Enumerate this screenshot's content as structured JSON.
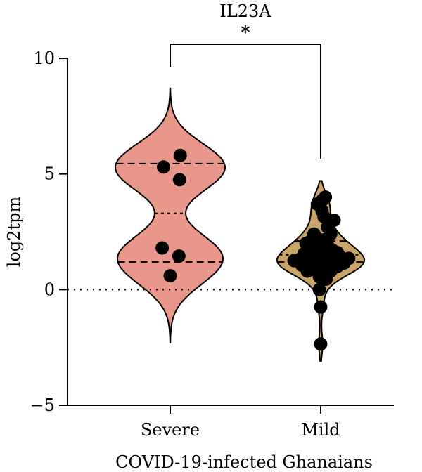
{
  "chart_data": {
    "type": "violin",
    "title": "IL23A",
    "xlabel": "COVID-19-infected Ghanaians",
    "ylabel": "log2tpm",
    "ylim": [
      -5,
      10
    ],
    "yticks": [
      "-5",
      "0",
      "5",
      "10"
    ],
    "categories": [
      "Severe",
      "Mild"
    ],
    "reference_line": 0,
    "significance": {
      "label": "*",
      "between": [
        "Severe",
        "Mild"
      ]
    },
    "series": [
      {
        "category": "Severe",
        "color": "#E8978A",
        "range": [
          -2.3,
          8.7
        ],
        "quartiles": [
          1.2,
          3.3,
          5.45
        ],
        "points": [
          {
            "x": -0.1,
            "y": 5.3
          },
          {
            "x": 0.15,
            "y": 5.8
          },
          {
            "x": 0.14,
            "y": 4.75
          },
          {
            "x": -0.12,
            "y": 1.8
          },
          {
            "x": 0.13,
            "y": 1.45
          },
          {
            "x": 0.0,
            "y": 0.6
          }
        ]
      },
      {
        "category": "Mild",
        "color": "#C9A56A",
        "range": [
          -3.1,
          4.7
        ],
        "quartiles": [
          1.2,
          1.5,
          2.1
        ],
        "points": [
          {
            "x": -0.05,
            "y": 3.7
          },
          {
            "x": 0.02,
            "y": 3.85
          },
          {
            "x": 0.07,
            "y": 4.0
          },
          {
            "x": 0.02,
            "y": 3.4
          },
          {
            "x": 0.05,
            "y": 3.15
          },
          {
            "x": 0.2,
            "y": 3.0
          },
          {
            "x": 0.1,
            "y": 2.7
          },
          {
            "x": 0.15,
            "y": 2.4
          },
          {
            "x": -0.1,
            "y": 2.4
          },
          {
            "x": -0.15,
            "y": 2.1
          },
          {
            "x": -0.22,
            "y": 2.0
          },
          {
            "x": -0.05,
            "y": 2.2
          },
          {
            "x": 0.05,
            "y": 2.15
          },
          {
            "x": 0.1,
            "y": 1.95
          },
          {
            "x": -0.12,
            "y": 1.8
          },
          {
            "x": 0.0,
            "y": 1.75
          },
          {
            "x": 0.18,
            "y": 1.7
          },
          {
            "x": 0.25,
            "y": 1.6
          },
          {
            "x": -0.25,
            "y": 1.55
          },
          {
            "x": -0.18,
            "y": 1.45
          },
          {
            "x": -0.05,
            "y": 1.5
          },
          {
            "x": 0.08,
            "y": 1.45
          },
          {
            "x": 0.3,
            "y": 1.4
          },
          {
            "x": 0.42,
            "y": 1.35
          },
          {
            "x": -0.32,
            "y": 1.3
          },
          {
            "x": -0.4,
            "y": 1.25
          },
          {
            "x": -0.2,
            "y": 1.2
          },
          {
            "x": 0.05,
            "y": 1.15
          },
          {
            "x": 0.2,
            "y": 1.2
          },
          {
            "x": 0.35,
            "y": 1.15
          },
          {
            "x": -0.1,
            "y": 1.05
          },
          {
            "x": 0.12,
            "y": 1.0
          },
          {
            "x": -0.28,
            "y": 1.05
          },
          {
            "x": 0.25,
            "y": 1.0
          },
          {
            "x": 0.0,
            "y": 0.95
          },
          {
            "x": -0.08,
            "y": 0.85
          },
          {
            "x": -0.2,
            "y": 0.8
          },
          {
            "x": 0.05,
            "y": 0.75
          },
          {
            "x": 0.15,
            "y": 0.8
          },
          {
            "x": -0.02,
            "y": 0.55
          },
          {
            "x": 0.08,
            "y": 0.45
          },
          {
            "x": -0.02,
            "y": 0.0
          },
          {
            "x": 0.0,
            "y": -0.75
          },
          {
            "x": 0.0,
            "y": -2.35
          }
        ]
      }
    ]
  }
}
